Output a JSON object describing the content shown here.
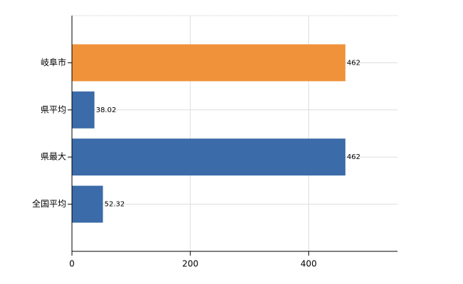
{
  "chart_data": {
    "type": "bar",
    "orientation": "horizontal",
    "categories": [
      "岐阜市",
      "県平均",
      "県最大",
      "全国平均"
    ],
    "values": [
      462,
      38.02,
      462,
      52.32
    ],
    "colors": [
      "#f0923a",
      "#3b6ba8",
      "#3b6ba8",
      "#3b6ba8"
    ],
    "xlim": [
      0,
      550
    ],
    "xticks": [
      0,
      200,
      400
    ],
    "grid": true
  }
}
